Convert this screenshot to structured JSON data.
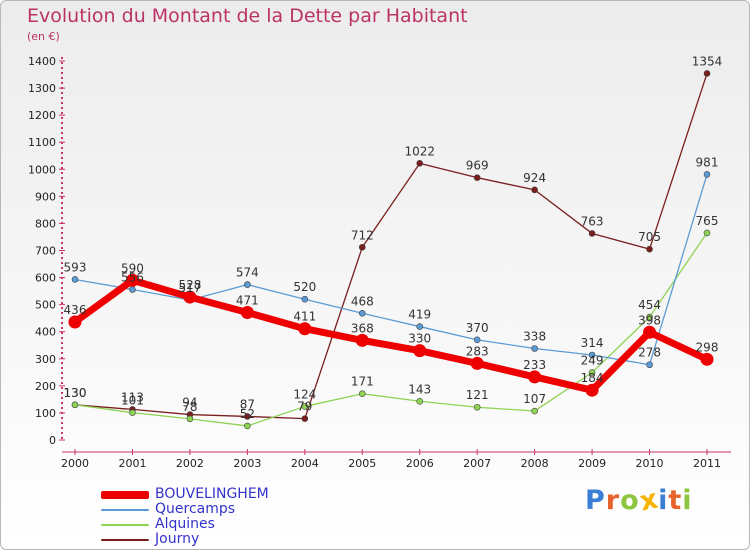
{
  "title": "Evolution du Montant de la Dette par Habitant",
  "subtitle": "(en €)",
  "logo": {
    "text": "Proxiti",
    "letters": [
      "P",
      "r",
      "o",
      "x",
      "i",
      "t",
      "i"
    ]
  },
  "chart_data": {
    "type": "line",
    "title": "Evolution du Montant de la Dette par Habitant",
    "ylabel": "(en €)",
    "xlabel": "",
    "x": [
      "2000",
      "2001",
      "2002",
      "2003",
      "2004",
      "2005",
      "2006",
      "2007",
      "2008",
      "2009",
      "2010",
      "2011"
    ],
    "ylim": [
      0,
      1400
    ],
    "yticks": [
      0,
      100,
      200,
      300,
      400,
      500,
      600,
      700,
      800,
      900,
      1000,
      1100,
      1200,
      1300,
      1400
    ],
    "grid": false,
    "legend": "bottom-left",
    "series": [
      {
        "name": "BOUVELINGHEM",
        "color": "#ee0000",
        "values": [
          436,
          590,
          528,
          471,
          411,
          368,
          330,
          283,
          233,
          184,
          398,
          298
        ],
        "labels": [
          "436",
          "590",
          "528",
          "471",
          "411",
          "368",
          "330",
          "283",
          "233",
          "184",
          "398",
          "298"
        ]
      },
      {
        "name": "Quercamps",
        "color": "#5b9bd5",
        "values": [
          593,
          556,
          517,
          574,
          520,
          468,
          419,
          370,
          338,
          314,
          278,
          981
        ],
        "labels": [
          "593",
          "556",
          "517",
          "574",
          "520",
          "468",
          "419",
          "370",
          "338",
          "314",
          "278",
          "981"
        ]
      },
      {
        "name": "Alquines",
        "color": "#8ed354",
        "values": [
          130,
          101,
          78,
          52,
          124,
          171,
          143,
          121,
          107,
          249,
          454,
          765
        ],
        "labels": [
          "130",
          "101",
          "78",
          "52",
          "124",
          "171",
          "143",
          "121",
          "107",
          "249",
          "454",
          "765"
        ]
      },
      {
        "name": "Journy",
        "color": "#7b1e1e",
        "values": [
          130,
          113,
          94,
          87,
          79,
          712,
          1022,
          969,
          924,
          763,
          705,
          1354
        ],
        "labels": [
          "130",
          "113",
          "94",
          "87",
          "79",
          "712",
          "1022",
          "969",
          "924",
          "763",
          "705",
          "1354"
        ]
      }
    ]
  }
}
